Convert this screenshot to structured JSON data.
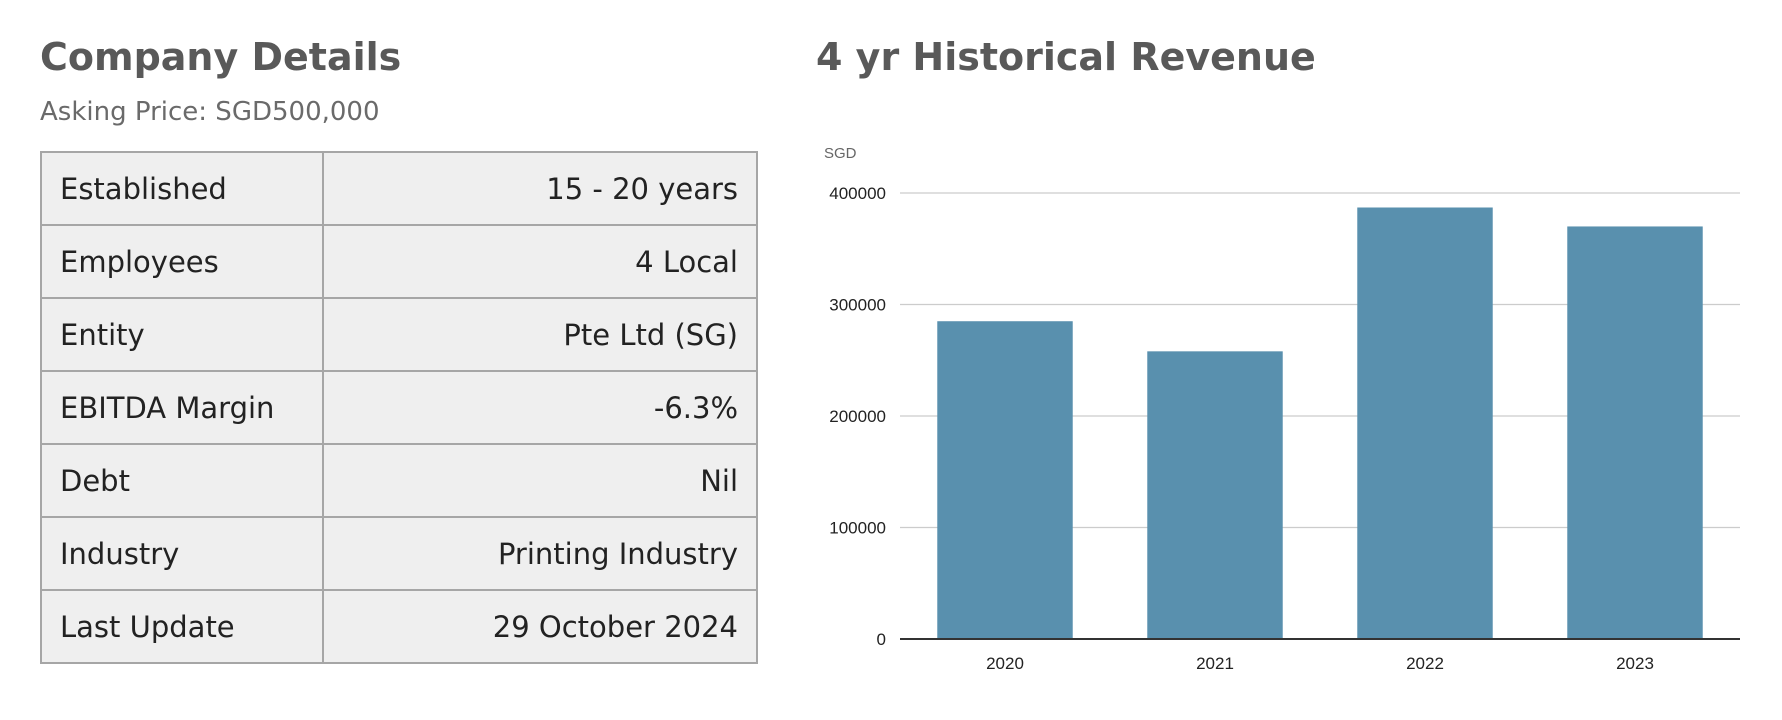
{
  "company": {
    "title": "Company Details",
    "asking_price": "Asking Price: SGD500,000",
    "rows": [
      {
        "label": "Established",
        "value": "15 - 20 years"
      },
      {
        "label": "Employees",
        "value": "4 Local"
      },
      {
        "label": "Entity",
        "value": "Pte Ltd (SG)"
      },
      {
        "label": "EBITDA Margin",
        "value": "-6.3%"
      },
      {
        "label": "Debt",
        "value": "Nil"
      },
      {
        "label": "Industry",
        "value": "Printing Industry"
      },
      {
        "label": "Last Update",
        "value": "29 October 2024"
      }
    ]
  },
  "chart_data": {
    "type": "bar",
    "title": "4 yr Historical Revenue",
    "ylabel": "SGD",
    "xlabel": "",
    "categories": [
      "2020",
      "2021",
      "2022",
      "2023"
    ],
    "values": [
      285000,
      258000,
      387000,
      370000
    ],
    "ylim": [
      0,
      400000
    ],
    "yticks": [
      0,
      100000,
      200000,
      300000,
      400000
    ],
    "grid": true,
    "bar_color": "#5990ae",
    "grid_color": "#cccccc",
    "axis_color": "#333333"
  }
}
